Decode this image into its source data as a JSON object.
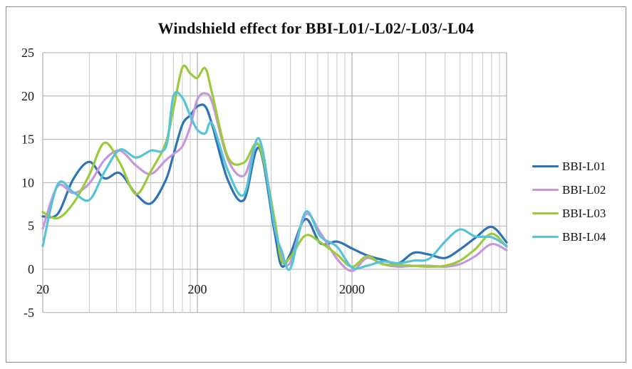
{
  "window": {
    "background_color": "#ffffff",
    "border_color": "#8c8c8c"
  },
  "chart_data": {
    "type": "line",
    "title": "Windshield effect for BBI-L01/-L02/-L03/-L04",
    "style": "smoothed lines, no markers",
    "legend_position": "right",
    "grid": true,
    "x_axis": {
      "scale": "log",
      "min": 20,
      "max": 20000,
      "unit": "Hz",
      "tick_labels": [
        "20",
        "200",
        "2000"
      ],
      "tick_values": [
        20,
        200,
        2000
      ],
      "gridlines_hz": [
        20,
        40,
        60,
        80,
        100,
        120,
        140,
        160,
        180,
        200,
        400,
        600,
        800,
        1000,
        1200,
        1400,
        1600,
        1800,
        2000,
        4000,
        6000,
        8000,
        10000,
        12000,
        14000,
        16000,
        18000,
        20000
      ]
    },
    "y_axis": {
      "min": -5,
      "max": 25,
      "tick_interval": 5,
      "tick_labels": [
        "25",
        "20",
        "15",
        "10",
        "5",
        "0",
        "-5"
      ],
      "tick_values": [
        25,
        20,
        15,
        10,
        5,
        0,
        -5
      ]
    },
    "colors": {
      "minor_gridline": "#c7c7c7",
      "major_gridline": "#9e9e9e",
      "horizontal_gridline": "#aeaeae",
      "tick_text": "#1a1a1a",
      "title_text": "#111111"
    },
    "x": [
      20,
      25,
      31.5,
      40,
      50,
      63,
      80,
      100,
      125,
      140,
      160,
      180,
      200,
      225,
      250,
      315,
      400,
      500,
      630,
      700,
      800,
      1000,
      1250,
      1600,
      2000,
      2500,
      3150,
      4000,
      5000,
      6300,
      8000,
      10000,
      12500,
      16000,
      20000
    ],
    "series": [
      {
        "name": "BBI-L01",
        "color": "#2E73B5",
        "values": [
          6.1,
          6.4,
          10.4,
          12.4,
          10.5,
          11.1,
          8.7,
          7.6,
          10.3,
          13.2,
          16.7,
          17.8,
          18.8,
          18.8,
          16.6,
          10.3,
          8.0,
          14.0,
          4.4,
          0.4,
          1.8,
          5.8,
          3.0,
          3.2,
          2.4,
          1.6,
          1.1,
          0.7,
          1.9,
          1.7,
          1.3,
          2.3,
          3.6,
          4.9,
          3.1
        ]
      },
      {
        "name": "BBI-L02",
        "color": "#C896DC",
        "values": [
          4.7,
          9.6,
          8.8,
          9.9,
          12.6,
          13.7,
          12.0,
          11.0,
          12.6,
          13.3,
          14.2,
          16.5,
          19.6,
          20.3,
          19.2,
          12.7,
          10.8,
          14.4,
          5.4,
          1.5,
          0.8,
          6.3,
          4.2,
          1.2,
          -0.2,
          1.3,
          0.6,
          0.3,
          0.4,
          0.4,
          0.3,
          0.6,
          1.5,
          2.9,
          2.2
        ]
      },
      {
        "name": "BBI-L03",
        "color": "#9BCB3A",
        "values": [
          6.6,
          5.9,
          7.6,
          10.9,
          14.6,
          12.3,
          8.7,
          11.3,
          14.6,
          18.5,
          23.3,
          22.6,
          22.1,
          23.2,
          20.2,
          13.0,
          12.3,
          14.3,
          5.9,
          1.0,
          1.4,
          3.9,
          3.1,
          1.7,
          0.3,
          1.5,
          0.6,
          0.5,
          0.4,
          0.3,
          0.4,
          1.0,
          2.3,
          4.1,
          2.6
        ]
      },
      {
        "name": "BBI-L04",
        "color": "#55C3D8",
        "values": [
          2.7,
          9.8,
          8.9,
          8.0,
          11.2,
          13.8,
          12.9,
          13.7,
          14.1,
          20.0,
          19.8,
          17.7,
          16.1,
          15.7,
          16.8,
          11.4,
          8.6,
          15.1,
          5.0,
          2.2,
          0.1,
          6.6,
          3.8,
          2.6,
          0.2,
          0.4,
          0.9,
          0.7,
          1.0,
          1.2,
          3.2,
          4.6,
          3.8,
          3.7,
          2.7
        ]
      }
    ]
  }
}
